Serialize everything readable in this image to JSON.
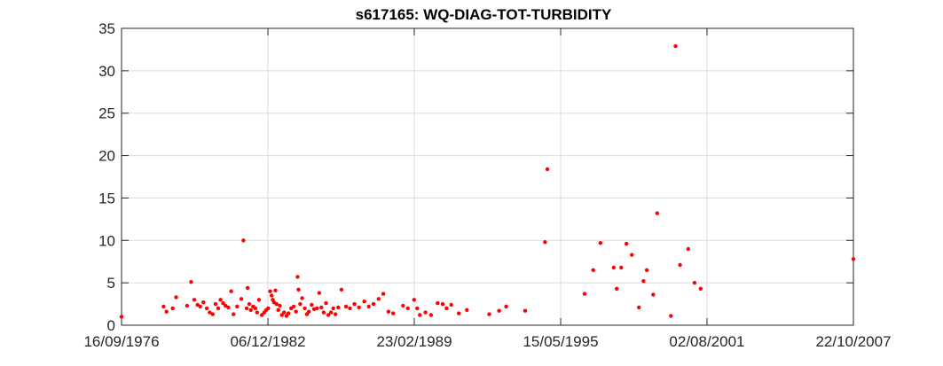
{
  "chart_data": {
    "type": "scatter",
    "title": "s617165: WQ-DIAG-TOT-TURBIDITY",
    "xlabel": "",
    "ylabel": "",
    "xlim": [
      "1976-09-16",
      "2007-10-22"
    ],
    "ylim": [
      0,
      35
    ],
    "xticks": [
      "1976-09-16",
      "1982-12-06",
      "1989-02-23",
      "1995-05-15",
      "2001-08-02",
      "2007-10-22"
    ],
    "xtick_labels": [
      "16/09/1976",
      "06/12/1982",
      "23/02/1989",
      "15/05/1995",
      "02/08/2001",
      "22/10/2007"
    ],
    "yticks": [
      0,
      5,
      10,
      15,
      20,
      25,
      30,
      35
    ],
    "ytick_labels": [
      "0",
      "5",
      "10",
      "15",
      "20",
      "25",
      "30",
      "35"
    ],
    "grid": true,
    "marker_color": "#ff0000",
    "series": [
      {
        "points": [
          [
            "1976-09-16",
            1.0
          ],
          [
            "1978-07-01",
            2.2
          ],
          [
            "1978-08-15",
            1.6
          ],
          [
            "1978-11-20",
            2.0
          ],
          [
            "1979-01-10",
            3.3
          ],
          [
            "1979-07-01",
            2.3
          ],
          [
            "1979-09-01",
            5.1
          ],
          [
            "1979-10-20",
            3.0
          ],
          [
            "1979-12-10",
            2.4
          ],
          [
            "1980-01-20",
            2.2
          ],
          [
            "1980-03-10",
            2.7
          ],
          [
            "1980-05-01",
            2.0
          ],
          [
            "1980-06-15",
            1.5
          ],
          [
            "1980-08-01",
            1.3
          ],
          [
            "1980-09-15",
            2.5
          ],
          [
            "1980-10-25",
            2.0
          ],
          [
            "1980-12-01",
            3.0
          ],
          [
            "1981-01-10",
            2.6
          ],
          [
            "1981-02-15",
            2.3
          ],
          [
            "1981-04-01",
            2.1
          ],
          [
            "1981-05-15",
            4.0
          ],
          [
            "1981-06-20",
            1.3
          ],
          [
            "1981-08-15",
            2.2
          ],
          [
            "1981-10-20",
            3.1
          ],
          [
            "1981-11-20",
            10.0
          ],
          [
            "1982-01-10",
            2.0
          ],
          [
            "1982-01-25",
            4.4
          ],
          [
            "1982-02-20",
            2.5
          ],
          [
            "1982-03-15",
            1.8
          ],
          [
            "1982-04-20",
            2.2
          ],
          [
            "1982-05-25",
            2.0
          ],
          [
            "1982-06-20",
            1.5
          ],
          [
            "1982-07-20",
            3.0
          ],
          [
            "1982-09-01",
            1.2
          ],
          [
            "1982-10-10",
            1.5
          ],
          [
            "1982-11-10",
            1.8
          ],
          [
            "1982-12-10",
            2.0
          ],
          [
            "1983-01-10",
            4.0
          ],
          [
            "1983-02-01",
            3.5
          ],
          [
            "1983-02-20",
            3.0
          ],
          [
            "1983-03-10",
            2.7
          ],
          [
            "1983-04-01",
            4.1
          ],
          [
            "1983-04-20",
            2.5
          ],
          [
            "1983-05-15",
            1.8
          ],
          [
            "1983-06-10",
            2.3
          ],
          [
            "1983-07-10",
            1.2
          ],
          [
            "1983-08-15",
            1.5
          ],
          [
            "1983-09-20",
            1.1
          ],
          [
            "1983-10-20",
            1.4
          ],
          [
            "1983-12-01",
            2.0
          ],
          [
            "1984-01-10",
            2.2
          ],
          [
            "1984-02-15",
            1.6
          ],
          [
            "1984-03-10",
            5.7
          ],
          [
            "1984-03-25",
            4.2
          ],
          [
            "1984-04-20",
            2.5
          ],
          [
            "1984-05-20",
            3.2
          ],
          [
            "1984-07-01",
            2.0
          ],
          [
            "1984-08-01",
            1.3
          ],
          [
            "1984-09-01",
            1.6
          ],
          [
            "1984-10-15",
            2.4
          ],
          [
            "1984-11-20",
            1.9
          ],
          [
            "1985-01-05",
            2.0
          ],
          [
            "1985-02-10",
            3.8
          ],
          [
            "1985-03-15",
            2.1
          ],
          [
            "1985-04-20",
            1.5
          ],
          [
            "1985-05-25",
            2.6
          ],
          [
            "1985-07-01",
            1.2
          ],
          [
            "1985-08-10",
            1.5
          ],
          [
            "1985-09-15",
            2.0
          ],
          [
            "1985-10-20",
            1.3
          ],
          [
            "1985-12-01",
            2.1
          ],
          [
            "1986-01-20",
            4.2
          ],
          [
            "1986-04-01",
            2.2
          ],
          [
            "1986-06-01",
            2.0
          ],
          [
            "1986-08-10",
            2.5
          ],
          [
            "1986-10-20",
            2.1
          ],
          [
            "1987-01-10",
            2.8
          ],
          [
            "1987-03-20",
            2.2
          ],
          [
            "1987-06-01",
            2.5
          ],
          [
            "1987-08-20",
            3.1
          ],
          [
            "1987-11-01",
            3.7
          ],
          [
            "1988-01-20",
            1.6
          ],
          [
            "1988-04-01",
            1.4
          ],
          [
            "1988-09-01",
            2.3
          ],
          [
            "1988-11-15",
            2.0
          ],
          [
            "1989-02-20",
            3.0
          ],
          [
            "1989-04-10",
            2.0
          ],
          [
            "1989-05-20",
            1.2
          ],
          [
            "1989-08-15",
            1.5
          ],
          [
            "1989-11-10",
            1.2
          ],
          [
            "1990-02-20",
            2.6
          ],
          [
            "1990-05-10",
            2.5
          ],
          [
            "1990-07-10",
            2.0
          ],
          [
            "1990-09-20",
            2.4
          ],
          [
            "1991-01-15",
            1.4
          ],
          [
            "1991-05-20",
            1.8
          ],
          [
            "1992-05-01",
            1.3
          ],
          [
            "1992-10-01",
            1.7
          ],
          [
            "1993-01-20",
            2.2
          ],
          [
            "1993-11-10",
            1.7
          ],
          [
            "1994-09-15",
            9.8
          ],
          [
            "1994-10-20",
            18.4
          ],
          [
            "1996-05-20",
            3.7
          ],
          [
            "1996-10-01",
            6.5
          ],
          [
            "1997-01-20",
            9.7
          ],
          [
            "1997-08-15",
            6.8
          ],
          [
            "1997-10-01",
            4.3
          ],
          [
            "1997-12-10",
            6.8
          ],
          [
            "1998-03-01",
            9.6
          ],
          [
            "1998-05-25",
            8.3
          ],
          [
            "1998-09-10",
            2.1
          ],
          [
            "1998-11-20",
            5.2
          ],
          [
            "1999-01-10",
            6.5
          ],
          [
            "1999-04-20",
            3.6
          ],
          [
            "1999-06-20",
            13.2
          ],
          [
            "2000-01-20",
            1.1
          ],
          [
            "2000-04-01",
            32.9
          ],
          [
            "2000-06-10",
            7.1
          ],
          [
            "2000-10-15",
            9.0
          ],
          [
            "2001-01-20",
            5.0
          ],
          [
            "2001-04-25",
            4.3
          ],
          [
            "2007-10-22",
            7.8
          ]
        ]
      }
    ]
  }
}
